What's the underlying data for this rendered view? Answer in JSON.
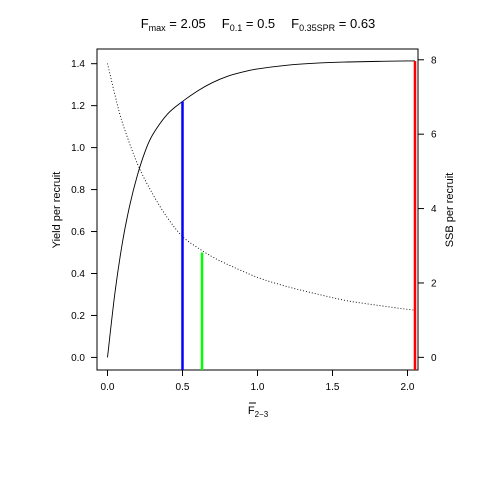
{
  "chart_data": {
    "type": "line",
    "title": {
      "fmax": {
        "base": "F",
        "sub": "max",
        "value": "2.05"
      },
      "f01": {
        "base": "F",
        "sub": "0.1",
        "value": "0.5"
      },
      "fspr": {
        "base": "F",
        "sub": "0.35SPR",
        "value": "0.63"
      }
    },
    "xlabel": {
      "base": "F",
      "sub": "2−3"
    },
    "ylabel_left": "Yield per recruit",
    "ylabel_right": "SSB per recruit",
    "xlim": [
      -0.07,
      2.07
    ],
    "ylim_left": [
      -0.06,
      1.47
    ],
    "ylim_right": [
      -0.34,
      8.29
    ],
    "xticks": [
      0,
      0.5,
      1,
      1.5,
      2
    ],
    "xtick_labels": [
      "0.0",
      "0.5",
      "1.0",
      "1.5",
      "2.0"
    ],
    "yticks_left": [
      0,
      0.2,
      0.4,
      0.6,
      0.8,
      1.0,
      1.2,
      1.4
    ],
    "ytick_labels_left": [
      "0.0",
      "0.2",
      "0.4",
      "0.6",
      "0.8",
      "1.0",
      "1.2",
      "1.4"
    ],
    "yticks_right": [
      0,
      2,
      4,
      6,
      8
    ],
    "ytick_labels_right": [
      "0",
      "2",
      "4",
      "6",
      "8"
    ],
    "grid": false,
    "series": [
      {
        "style": "solid",
        "axis": "left",
        "x": [
          0,
          0.05,
          0.1,
          0.15,
          0.2,
          0.25,
          0.3,
          0.4,
          0.5,
          0.6,
          0.7,
          0.8,
          0.9,
          1.0,
          1.2,
          1.4,
          1.6,
          1.8,
          2.0,
          2.05
        ],
        "y": [
          0.0,
          0.31,
          0.55,
          0.73,
          0.87,
          0.98,
          1.06,
          1.16,
          1.22,
          1.27,
          1.31,
          1.34,
          1.36,
          1.375,
          1.393,
          1.403,
          1.408,
          1.411,
          1.413,
          1.413
        ]
      },
      {
        "style": "dotted",
        "axis": "right",
        "x": [
          0,
          0.05,
          0.1,
          0.2,
          0.3,
          0.4,
          0.5,
          0.6,
          0.7,
          0.8,
          1.0,
          1.2,
          1.4,
          1.6,
          1.8,
          2.0,
          2.05
        ],
        "y": [
          7.9,
          7.05,
          6.3,
          5.2,
          4.4,
          3.75,
          3.25,
          2.95,
          2.7,
          2.5,
          2.15,
          1.9,
          1.7,
          1.52,
          1.4,
          1.29,
          1.27
        ]
      }
    ],
    "reference_lines": [
      {
        "x": 0.5,
        "color": "#0000ff",
        "y_top": 1.22
      },
      {
        "x": 0.63,
        "color": "#00ff00",
        "y_top": 0.5
      },
      {
        "x": 2.05,
        "color": "#ff0000",
        "y_top": 1.413
      }
    ]
  }
}
